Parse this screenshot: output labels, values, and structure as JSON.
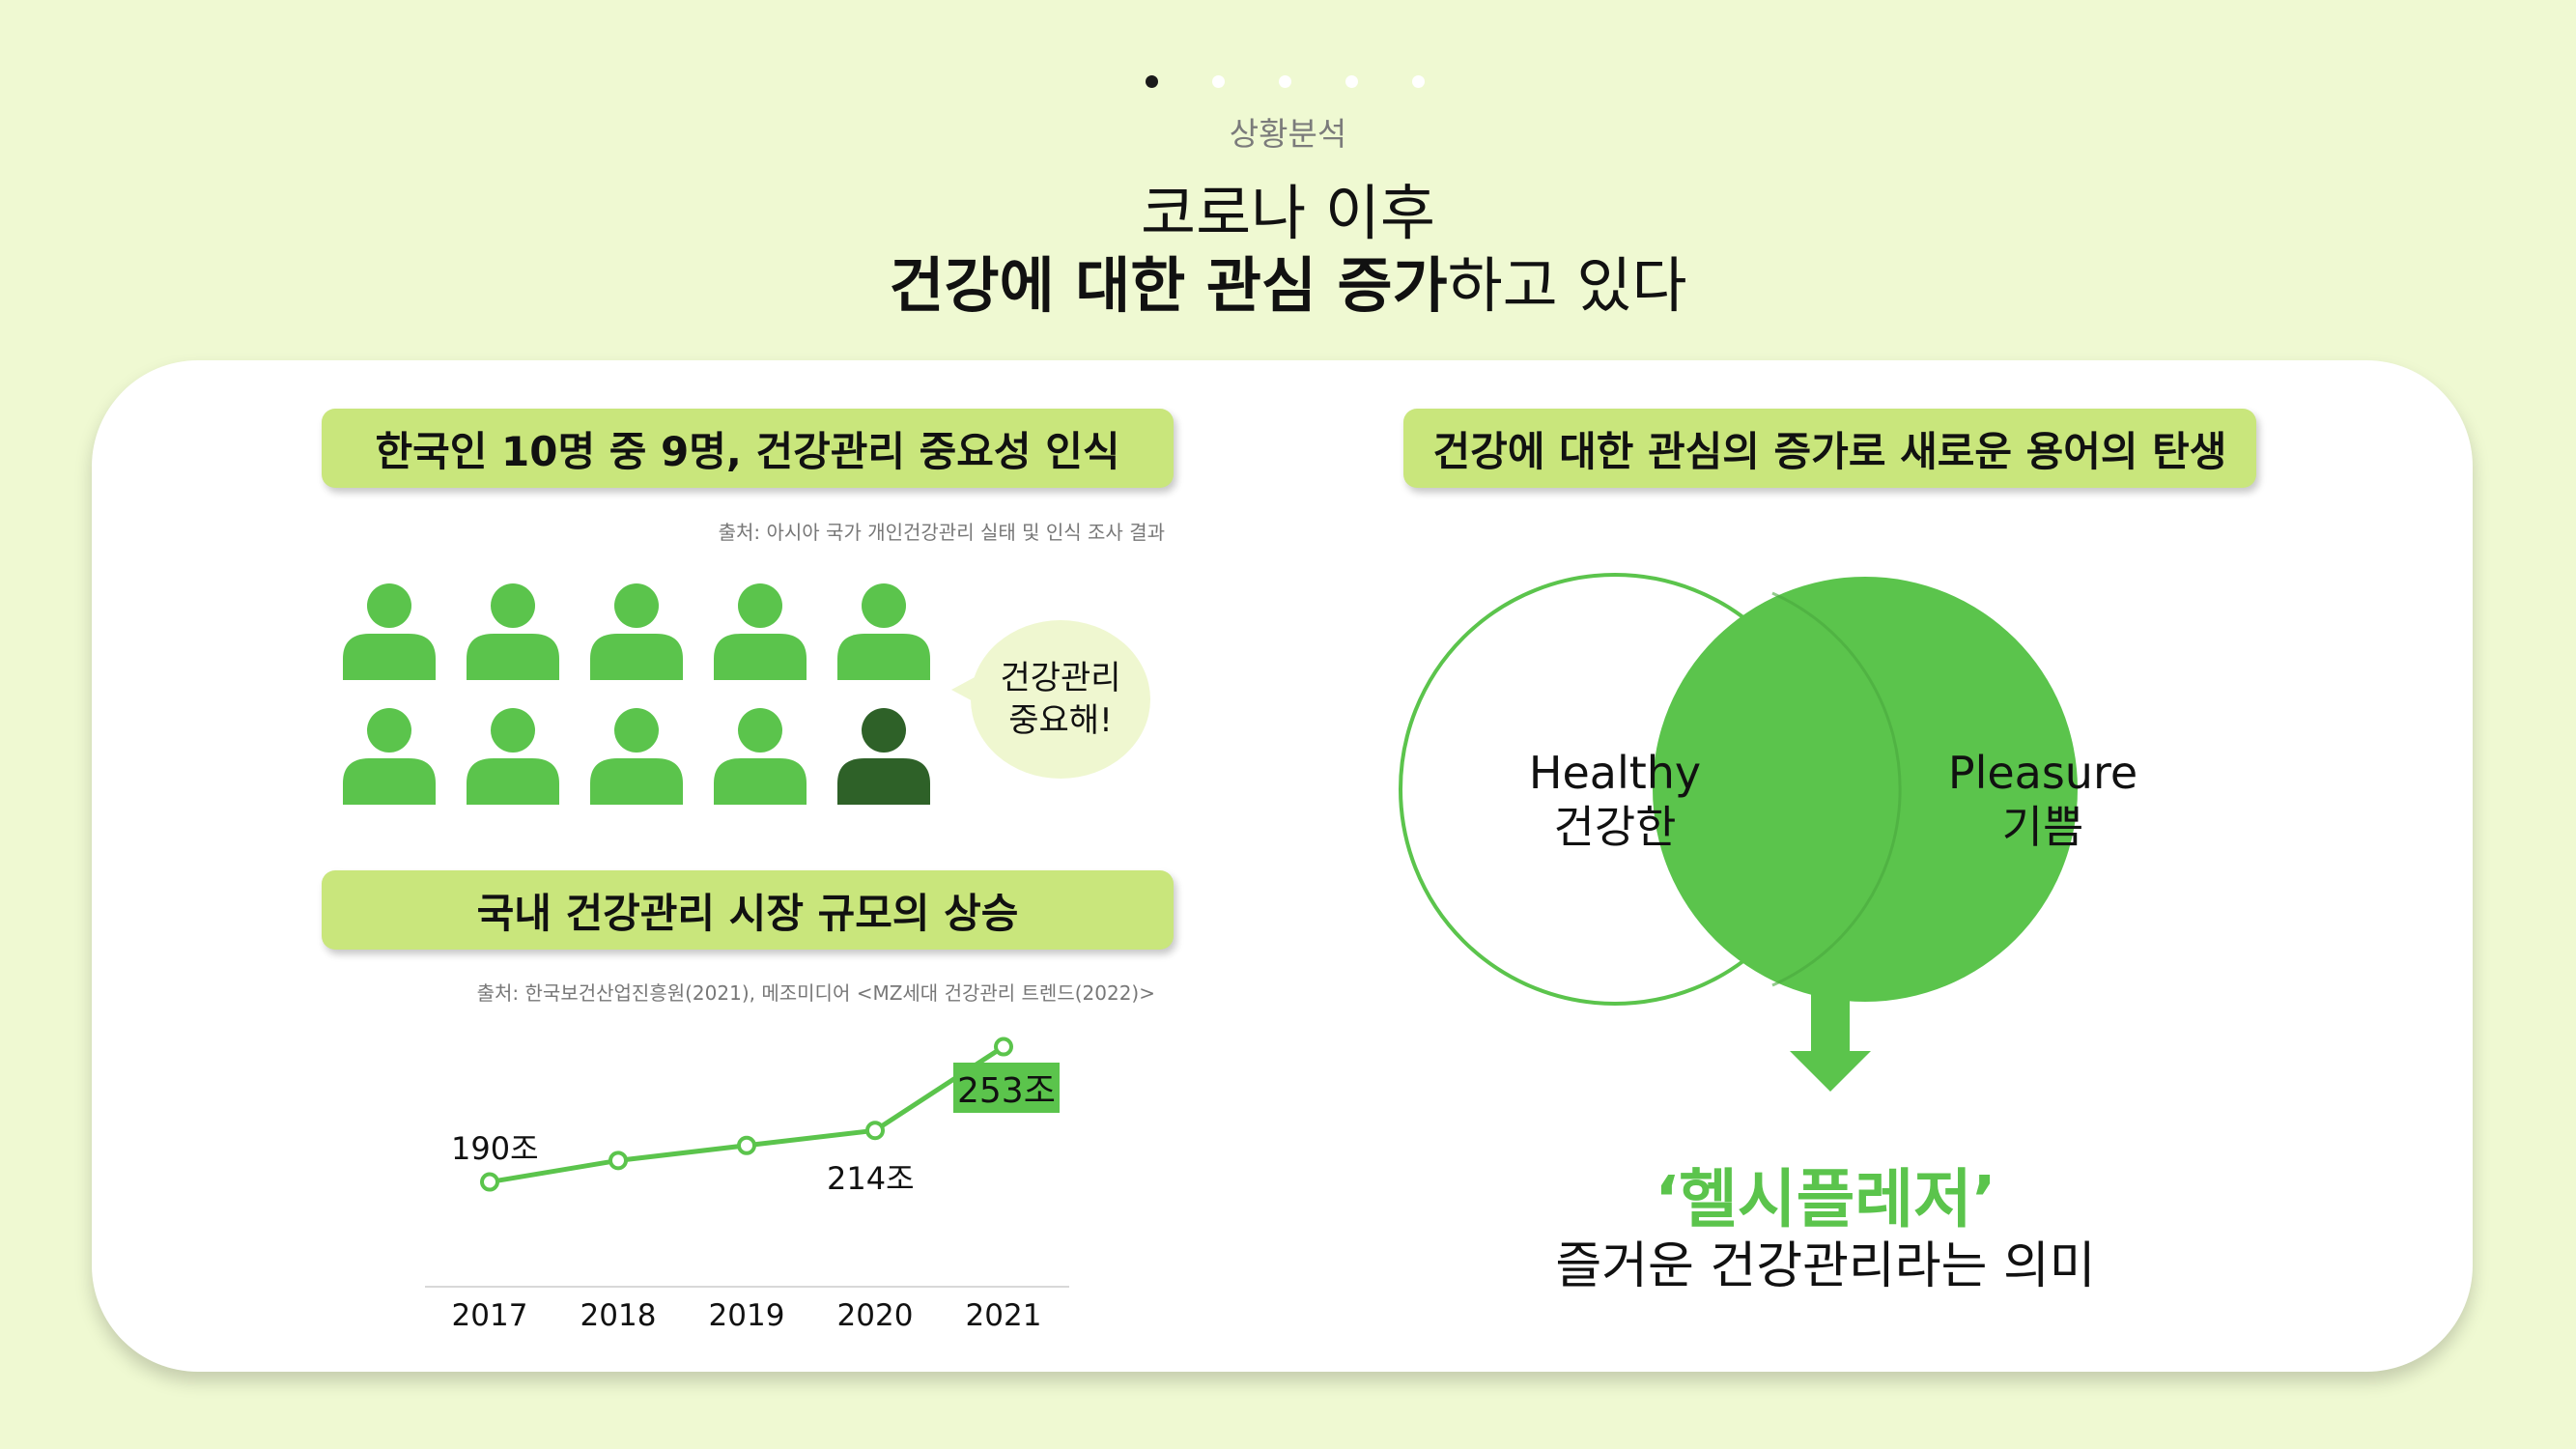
{
  "pager": {
    "total": 5,
    "active": 0
  },
  "header": {
    "section": "상황분석",
    "line1": "코로나 이후",
    "line2_bold": "건강에 대한 관심 증가",
    "line2_rest": "하고 있다"
  },
  "left": {
    "survey": {
      "title": "한국인 10명 중 9명, 건강관리 중요성 인식",
      "source": "출처: 아시아 국가 개인건강관리 실태 및 인식 조사 결과",
      "people_total": 10,
      "people_aware": 9,
      "bubble_line1": "건강관리",
      "bubble_line2": "중요해!"
    },
    "market": {
      "title": "국내 건강관리 시장 규모의 상승",
      "source": "출처: 한국보건산업진흥원(2021), 메조미디어 <MZ세대 건강관리 트렌드(2022)>"
    }
  },
  "chart_data": {
    "type": "line",
    "x": [
      "2017",
      "2018",
      "2019",
      "2020",
      "2021"
    ],
    "series": [
      {
        "values": [
          190,
          200,
          207,
          214,
          253
        ]
      }
    ],
    "annotations": [
      {
        "x": "2017",
        "label": "190조"
      },
      {
        "x": "2020",
        "label": "214조"
      },
      {
        "x": "2021",
        "label": "253조"
      }
    ],
    "ylim": [
      170,
      260
    ],
    "line_color": "#5bc44c"
  },
  "right": {
    "title": "건강에 대한 관심의 증가로 새로운 용어의 탄생",
    "venn": {
      "left_en": "Healthy",
      "left_ko": "건강한",
      "right_en": "Pleasure",
      "right_ko": "기쁨"
    },
    "result_title": "‘헬시플레저’",
    "result_sub": "즐거운 건강관리라는 의미"
  },
  "colors": {
    "background": "#eff9d2",
    "accent_green": "#5bc44c",
    "pill_green": "#c9e67c",
    "dark_green": "#2e6128"
  }
}
